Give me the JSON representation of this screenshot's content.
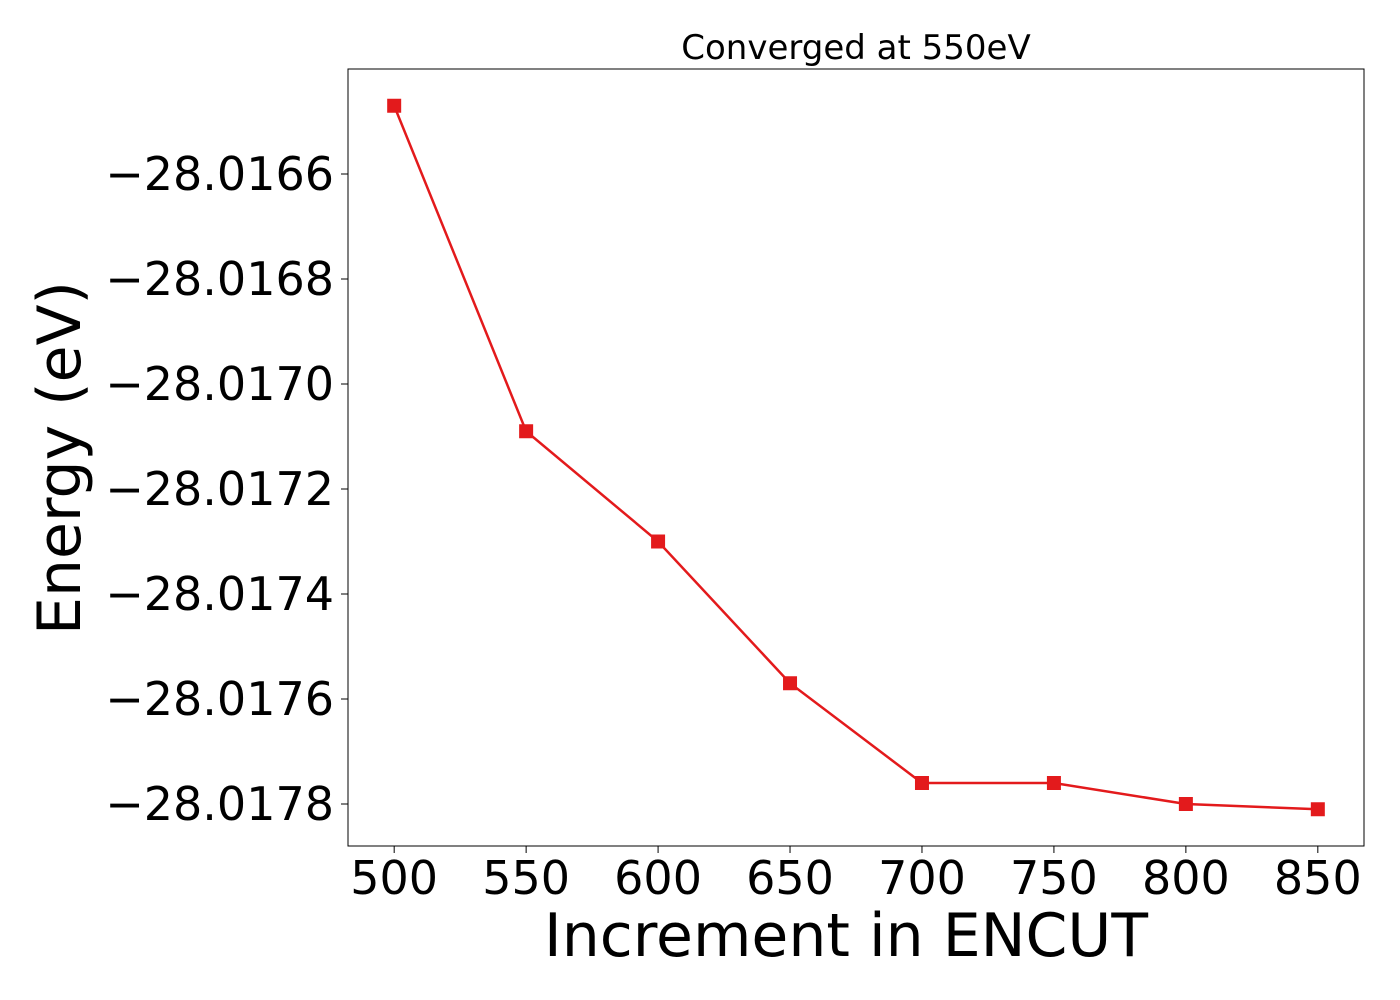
{
  "chart_data": {
    "type": "line",
    "title": "Converged at 550eV",
    "xlabel": "Increment in ENCUT",
    "ylabel": "Energy (eV)",
    "x": [
      500,
      550,
      600,
      650,
      700,
      750,
      800,
      850
    ],
    "series": [
      {
        "values": [
          -28.01647,
          -28.01709,
          -28.0173,
          -28.01757,
          -28.01776,
          -28.01776,
          -28.0178,
          -28.01781
        ],
        "color": "#e31a1c",
        "marker": "square"
      }
    ],
    "xlim": [
      482.5,
      867.5
    ],
    "ylim": [
      -28.01788,
      -28.0164
    ],
    "xticks": [
      500,
      550,
      600,
      650,
      700,
      750,
      800,
      850
    ],
    "xtick_labels": [
      "500",
      "550",
      "600",
      "650",
      "700",
      "750",
      "800",
      "850"
    ],
    "yticks": [
      -28.0166,
      -28.0168,
      -28.017,
      -28.0172,
      -28.0174,
      -28.0176,
      -28.0178
    ],
    "ytick_labels": [
      "−28.0166",
      "−28.0168",
      "−28.0170",
      "−28.0172",
      "−28.0174",
      "−28.0176",
      "−28.0178"
    ],
    "grid": false,
    "legend": "none"
  }
}
